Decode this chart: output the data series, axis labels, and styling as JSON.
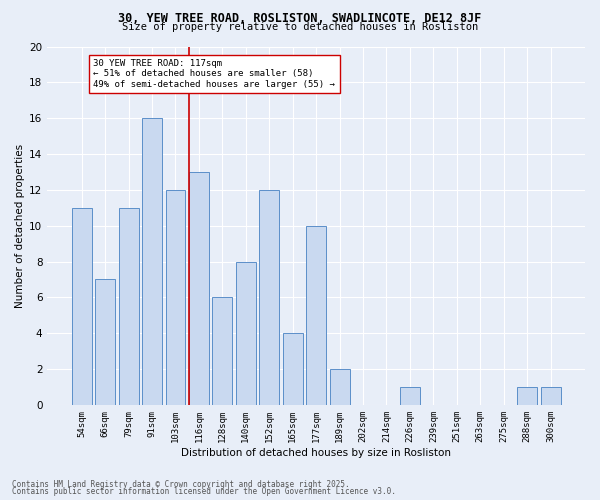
{
  "title1": "30, YEW TREE ROAD, ROSLISTON, SWADLINCOTE, DE12 8JF",
  "title2": "Size of property relative to detached houses in Rosliston",
  "xlabel": "Distribution of detached houses by size in Rosliston",
  "ylabel": "Number of detached properties",
  "categories": [
    "54sqm",
    "66sqm",
    "79sqm",
    "91sqm",
    "103sqm",
    "116sqm",
    "128sqm",
    "140sqm",
    "152sqm",
    "165sqm",
    "177sqm",
    "189sqm",
    "202sqm",
    "214sqm",
    "226sqm",
    "239sqm",
    "251sqm",
    "263sqm",
    "275sqm",
    "288sqm",
    "300sqm"
  ],
  "values": [
    11,
    7,
    11,
    16,
    12,
    13,
    6,
    8,
    12,
    4,
    10,
    2,
    0,
    0,
    1,
    0,
    0,
    0,
    0,
    1,
    1
  ],
  "bar_color": "#c9d9f0",
  "bar_edge_color": "#5b8fc9",
  "ref_line_x": 5.0,
  "ref_line_color": "#cc0000",
  "annotation_text": "30 YEW TREE ROAD: 117sqm\n← 51% of detached houses are smaller (58)\n49% of semi-detached houses are larger (55) →",
  "annotation_box_color": "#ffffff",
  "annotation_box_edge": "#cc0000",
  "ylim": [
    0,
    20
  ],
  "yticks": [
    0,
    2,
    4,
    6,
    8,
    10,
    12,
    14,
    16,
    18,
    20
  ],
  "footer1": "Contains HM Land Registry data © Crown copyright and database right 2025.",
  "footer2": "Contains public sector information licensed under the Open Government Licence v3.0.",
  "bg_color": "#e8eef8",
  "grid_color": "#ffffff"
}
